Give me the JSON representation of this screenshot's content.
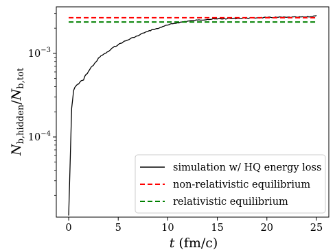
{
  "chart_data": {
    "type": "line",
    "xlabel": "t (fm/c)",
    "ylabel": "N_{b,hidden}/N_{b,tot}",
    "ylabel_parts": {
      "N": "N",
      "sub_hidden": "b,hidden",
      "slash": "/",
      "sub_tot": "b,tot"
    },
    "xlabel_parts": {
      "t": "t",
      "unit": " (fm/c)"
    },
    "xlim": [
      -1.25,
      26.25
    ],
    "ylim": [
      1.1e-05,
      0.0036
    ],
    "yscale": "log",
    "x_ticks": [
      0,
      5,
      10,
      15,
      20,
      25
    ],
    "x_tick_labels": [
      "0",
      "5",
      "10",
      "15",
      "20",
      "25"
    ],
    "y_ticks": [
      0.001,
      0.0001
    ],
    "y_tick_labels": [
      {
        "base": "10",
        "exp": "−3"
      },
      {
        "base": "10",
        "exp": "−4"
      }
    ],
    "legend_position": "lower-right",
    "series": [
      {
        "name": "simulation w/ HQ energy loss",
        "color": "#000000",
        "style": "solid",
        "x": [
          0.0,
          0.15,
          0.3,
          0.5,
          0.75,
          1.0,
          1.25,
          1.5,
          1.75,
          2.0,
          2.25,
          2.5,
          2.75,
          3.0,
          3.5,
          4.0,
          4.5,
          5.0,
          5.5,
          6.0,
          6.5,
          7.0,
          7.5,
          8.0,
          8.5,
          9.0,
          9.5,
          10.0,
          10.5,
          11.0,
          11.5,
          12.0,
          13.0,
          14.0,
          15.0,
          16.0,
          17.0,
          18.0,
          19.0,
          20.0,
          21.0,
          22.0,
          23.0,
          24.0,
          24.5,
          25.0
        ],
        "y": [
          1.15e-05,
          5e-05,
          0.00022,
          0.00036,
          0.00041,
          0.00043,
          0.00047,
          0.00048,
          0.00056,
          0.00061,
          0.00068,
          0.00072,
          0.00079,
          0.00088,
          0.00097,
          0.00105,
          0.00118,
          0.00127,
          0.00137,
          0.00145,
          0.00155,
          0.00162,
          0.00175,
          0.00183,
          0.00193,
          0.00198,
          0.0021,
          0.00218,
          0.00226,
          0.00232,
          0.00238,
          0.00243,
          0.0025,
          0.00255,
          0.00258,
          0.0026,
          0.00262,
          0.00264,
          0.00266,
          0.00268,
          0.0027,
          0.0027,
          0.00271,
          0.00272,
          0.00275,
          0.00285
        ]
      },
      {
        "name": "non-relativistic equilibrium",
        "color": "#ff0000",
        "style": "dashed",
        "x": [
          0,
          25
        ],
        "y": [
          0.00267,
          0.00267
        ]
      },
      {
        "name": "relativistic equilibrium",
        "color": "#008000",
        "style": "dashed",
        "x": [
          0,
          25
        ],
        "y": [
          0.00237,
          0.00237
        ]
      }
    ]
  }
}
